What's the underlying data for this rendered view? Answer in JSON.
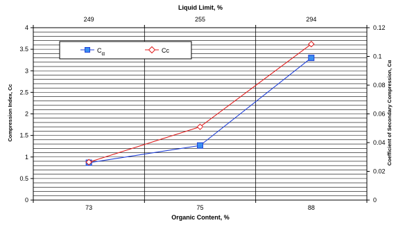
{
  "chart_data": {
    "type": "line",
    "categories": [
      "73",
      "75",
      "88"
    ],
    "top_categories": [
      "249",
      "255",
      "294"
    ],
    "title": "",
    "xlabel": "Organic Content, %",
    "x2label": "Liquid Limit, %",
    "ylabel": "Compression Index, Cc",
    "y2label": "Coefficient of Secondary Compression, Cα",
    "ylim": [
      0,
      4
    ],
    "y2lim": [
      0,
      0.12
    ],
    "yticks": [
      "0",
      "0.5",
      "1",
      "1.5",
      "2",
      "2.5",
      "3",
      "3.5",
      "4"
    ],
    "y2ticks": [
      "0",
      "0.02",
      "0.04",
      "0.06",
      "0.08",
      "0.1",
      "0.12"
    ],
    "grid": true,
    "legend_position": "top-left",
    "series": [
      {
        "name": "Cα",
        "name_main": "C",
        "name_sub": "α",
        "axis": "right",
        "values": [
          0.026,
          0.038,
          0.099
        ],
        "color": "#1f3fd8",
        "marker": "square",
        "marker_fill": "#3a8ef0"
      },
      {
        "name": "Cc",
        "axis": "left",
        "values": [
          0.88,
          1.7,
          3.62
        ],
        "color": "#e01b1b",
        "marker": "diamond",
        "marker_fill": "#ffffff"
      }
    ]
  }
}
